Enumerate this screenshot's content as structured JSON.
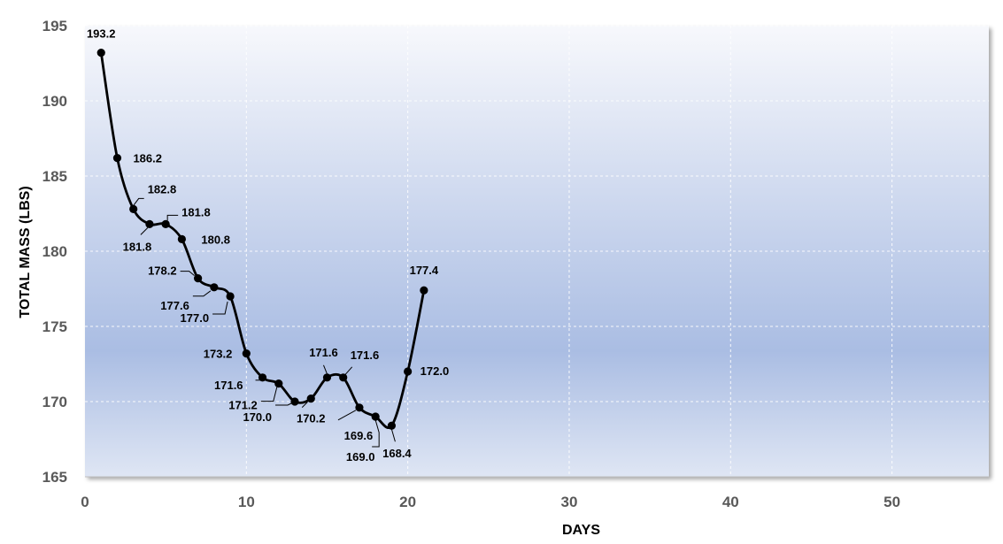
{
  "chart_data": {
    "type": "line",
    "title": "",
    "xlabel": "DAYS",
    "ylabel": "TOTAL MASS (LBS)",
    "xlim": [
      0,
      56
    ],
    "ylim": [
      165,
      195
    ],
    "x_ticks": [
      "0",
      "10",
      "20",
      "30",
      "40",
      "50"
    ],
    "y_ticks": [
      "165",
      "170",
      "175",
      "180",
      "185",
      "190",
      "195"
    ],
    "grid": true,
    "legend": "none",
    "series": [
      {
        "x": [
          1,
          2,
          3,
          4,
          5,
          6,
          7,
          8,
          9,
          10,
          11,
          12,
          13,
          14,
          15,
          16,
          17,
          18,
          19,
          20,
          21
        ],
        "values": [
          193.2,
          186.2,
          182.8,
          181.8,
          181.8,
          180.8,
          178.2,
          177.6,
          177.0,
          173.2,
          171.6,
          171.2,
          170.0,
          170.2,
          171.6,
          171.6,
          169.6,
          169.0,
          168.4,
          172.0,
          177.4
        ],
        "labels": [
          "193.2",
          "186.2",
          "182.8",
          "181.8",
          "181.8",
          "180.8",
          "178.2",
          "177.6",
          "177.0",
          "173.2",
          "171.6",
          "171.2",
          "170.0",
          "170.2",
          "171.6",
          "171.6",
          "169.6",
          "169.0",
          "168.4",
          "172.0",
          "177.4"
        ]
      }
    ],
    "colors": {
      "line": "#000000",
      "plot_top": "#f7f8fc",
      "plot_mid": "#aabde3",
      "plot_bottom": "#dfe6f4",
      "axis": "#bfbfbf"
    }
  }
}
